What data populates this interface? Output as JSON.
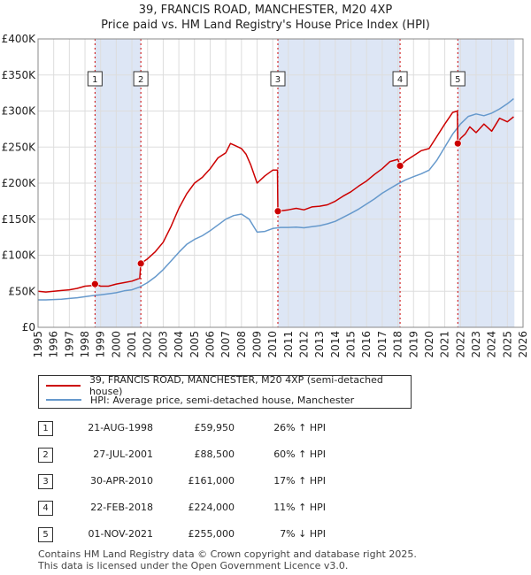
{
  "title_line1": "39, FRANCIS ROAD, MANCHESTER, M20 4XP",
  "title_line2": "Price paid vs. HM Land Registry's House Price Index (HPI)",
  "legend": {
    "property_label": "39, FRANCIS ROAD, MANCHESTER, M20 4XP (semi-detached house)",
    "hpi_label": "HPI: Average price, semi-detached house, Manchester"
  },
  "colors": {
    "property": "#cc0000",
    "hpi": "#6699cc",
    "shade": "#dde6f5",
    "grid": "#dddddd"
  },
  "sales": [
    {
      "num": "1",
      "date": "21-AUG-1998",
      "price": "£59,950",
      "hpi": "26% ↑ HPI"
    },
    {
      "num": "2",
      "date": "27-JUL-2001",
      "price": "£88,500",
      "hpi": "60% ↑ HPI"
    },
    {
      "num": "3",
      "date": "30-APR-2010",
      "price": "£161,000",
      "hpi": "17% ↑ HPI"
    },
    {
      "num": "4",
      "date": "22-FEB-2018",
      "price": "£224,000",
      "hpi": "11% ↑ HPI"
    },
    {
      "num": "5",
      "date": "01-NOV-2021",
      "price": "£255,000",
      "hpi": "7% ↓ HPI"
    }
  ],
  "footer": {
    "line1": "Contains HM Land Registry data © Crown copyright and database right 2025.",
    "line2": "This data is licensed under the Open Government Licence v3.0."
  },
  "chart_data": {
    "type": "line",
    "xlim": [
      1995,
      2026
    ],
    "ylim": [
      0,
      400000
    ],
    "yticks": [
      {
        "value": 0,
        "label": "£0"
      },
      {
        "value": 50000,
        "label": "£50K"
      },
      {
        "value": 100000,
        "label": "£100K"
      },
      {
        "value": 150000,
        "label": "£150K"
      },
      {
        "value": 200000,
        "label": "£200K"
      },
      {
        "value": 250000,
        "label": "£250K"
      },
      {
        "value": 300000,
        "label": "£300K"
      },
      {
        "value": 350000,
        "label": "£350K"
      },
      {
        "value": 400000,
        "label": "£400K"
      }
    ],
    "xticks": [
      "1995",
      "1996",
      "1997",
      "1998",
      "1999",
      "2000",
      "2001",
      "2002",
      "2003",
      "2004",
      "2005",
      "2006",
      "2007",
      "2008",
      "2009",
      "2010",
      "2011",
      "2012",
      "2013",
      "2014",
      "2015",
      "2016",
      "2017",
      "2018",
      "2019",
      "2020",
      "2021",
      "2022",
      "2023",
      "2024",
      "2025",
      "2026"
    ],
    "shaded_ranges": [
      [
        1998.64,
        2001.57
      ],
      [
        2010.33,
        2018.14
      ],
      [
        2021.83,
        2025.45
      ]
    ],
    "sale_markers": [
      {
        "label": "1",
        "x": 1998.64,
        "y": 59950
      },
      {
        "label": "2",
        "x": 2001.57,
        "y": 88500
      },
      {
        "label": "3",
        "x": 2010.33,
        "y": 161000
      },
      {
        "label": "4",
        "x": 2018.14,
        "y": 224000
      },
      {
        "label": "5",
        "x": 2021.83,
        "y": 255000
      }
    ],
    "series": [
      {
        "name": "39, FRANCIS ROAD, MANCHESTER, M20 4XP (semi-detached house)",
        "x": [
          1995,
          1995.5,
          1996,
          1996.5,
          1997,
          1997.5,
          1998,
          1998.5,
          1998.64,
          1999,
          1999.5,
          2000,
          2000.5,
          2001,
          2001.5,
          2001.57,
          2002,
          2002.5,
          2003,
          2003.5,
          2004,
          2004.5,
          2005,
          2005.5,
          2006,
          2006.5,
          2007,
          2007.3,
          2007.6,
          2008,
          2008.3,
          2008.6,
          2009,
          2009.5,
          2010,
          2010.3,
          2010.33,
          2011,
          2011.5,
          2012,
          2012.5,
          2013,
          2013.5,
          2014,
          2014.5,
          2015,
          2015.5,
          2016,
          2016.5,
          2017,
          2017.5,
          2018,
          2018.14,
          2018.5,
          2019,
          2019.5,
          2020,
          2020.5,
          2021,
          2021.5,
          2021.8,
          2021.83,
          2022,
          2022.3,
          2022.6,
          2023,
          2023.5,
          2024,
          2024.5,
          2025,
          2025.4
        ],
        "y": [
          50000,
          49000,
          50000,
          51000,
          52000,
          54000,
          57000,
          58000,
          59950,
          57000,
          57000,
          60000,
          62000,
          64000,
          68000,
          88500,
          95000,
          105000,
          118000,
          140000,
          165000,
          185000,
          200000,
          208000,
          220000,
          235000,
          242000,
          255000,
          252000,
          248000,
          240000,
          225000,
          200000,
          210000,
          218000,
          218000,
          161000,
          163000,
          165000,
          163000,
          167000,
          168000,
          170000,
          175000,
          182000,
          188000,
          196000,
          203000,
          212000,
          220000,
          230000,
          233000,
          224000,
          231000,
          238000,
          245000,
          248000,
          265000,
          282000,
          298000,
          300000,
          255000,
          262000,
          268000,
          278000,
          270000,
          282000,
          272000,
          290000,
          285000,
          292000
        ]
      },
      {
        "name": "HPI: Average price, semi-detached house, Manchester",
        "x": [
          1995,
          1995.5,
          1996,
          1996.5,
          1997,
          1997.5,
          1998,
          1998.5,
          1999,
          1999.5,
          2000,
          2000.5,
          2001,
          2001.5,
          2002,
          2002.5,
          2003,
          2003.5,
          2004,
          2004.5,
          2005,
          2005.5,
          2006,
          2006.5,
          2007,
          2007.5,
          2008,
          2008.5,
          2009,
          2009.5,
          2010,
          2010.5,
          2011,
          2011.5,
          2012,
          2012.5,
          2013,
          2013.5,
          2014,
          2014.5,
          2015,
          2015.5,
          2016,
          2016.5,
          2017,
          2017.5,
          2018,
          2018.5,
          2019,
          2019.5,
          2020,
          2020.5,
          2021,
          2021.5,
          2022,
          2022.5,
          2023,
          2023.5,
          2024,
          2024.5,
          2025,
          2025.4
        ],
        "y": [
          38000,
          38000,
          38500,
          39000,
          40000,
          41000,
          42500,
          44000,
          45000,
          46500,
          48000,
          50500,
          52000,
          56000,
          62000,
          70000,
          80000,
          92000,
          104000,
          115000,
          122000,
          127000,
          134000,
          142000,
          150000,
          155000,
          157000,
          150000,
          132000,
          133000,
          137000,
          138500,
          138500,
          139000,
          138000,
          139500,
          141000,
          143500,
          147000,
          152500,
          158000,
          164000,
          171000,
          178000,
          186000,
          192500,
          199000,
          204500,
          209000,
          213000,
          218000,
          232000,
          250000,
          268000,
          282000,
          292500,
          296000,
          293500,
          297000,
          303000,
          310000,
          317000
        ]
      }
    ]
  }
}
